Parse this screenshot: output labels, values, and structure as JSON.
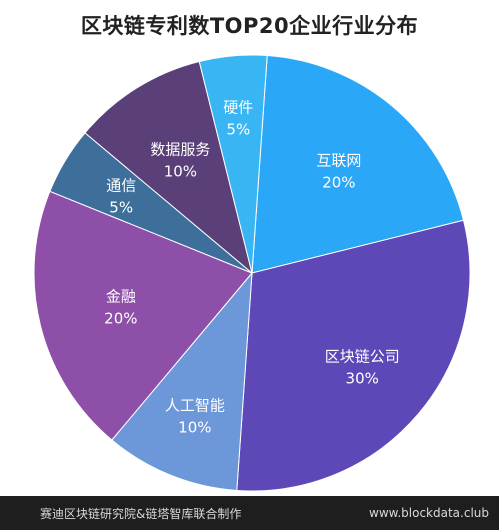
{
  "chart_data": {
    "type": "pie",
    "title": "区块链专利数TOP20企业行业分布",
    "slices": [
      {
        "label": "互联网",
        "value": 20,
        "value_label": "20%",
        "color": "#2aa7f6"
      },
      {
        "label": "区块链公司",
        "value": 30,
        "value_label": "30%",
        "color": "#5e48b8"
      },
      {
        "label": "人工智能",
        "value": 10,
        "value_label": "10%",
        "color": "#6c97d8"
      },
      {
        "label": "金融",
        "value": 20,
        "value_label": "20%",
        "color": "#8e4fa8"
      },
      {
        "label": "通信",
        "value": 5,
        "value_label": "5%",
        "color": "#3d6f9a"
      },
      {
        "label": "数据服务",
        "value": 10,
        "value_label": "10%",
        "color": "#5a3f78"
      },
      {
        "label": "硬件",
        "value": 5,
        "value_label": "5%",
        "color": "#38b6f4"
      }
    ]
  },
  "footer": {
    "source": "赛迪区块链研究院&链塔智库联合制作",
    "url": "www.blockdata.club"
  }
}
